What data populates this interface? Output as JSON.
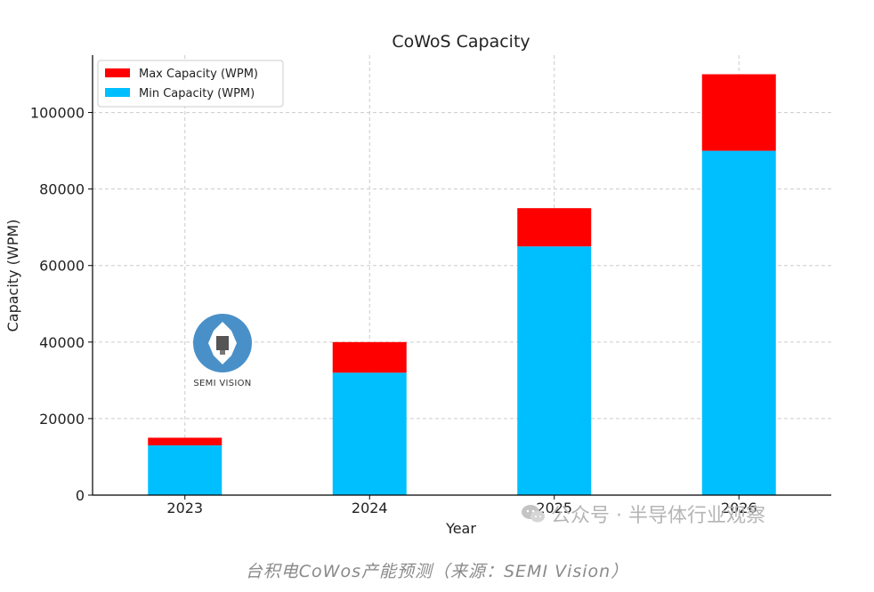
{
  "chart_data": {
    "type": "bar",
    "stacked": true,
    "title": "CoWoS Capacity",
    "xlabel": "Year",
    "ylabel": "Capacity (WPM)",
    "categories": [
      "2023",
      "2024",
      "2025",
      "2026"
    ],
    "series": [
      {
        "name": "Min Capacity (WPM)",
        "color": "#00bfff",
        "values": [
          13000,
          32000,
          65000,
          90000
        ]
      },
      {
        "name": "Max Capacity (WPM)",
        "color": "#ff0000",
        "values": [
          2000,
          8000,
          10000,
          20000
        ]
      }
    ],
    "ylim": [
      0,
      115000
    ],
    "yticks": [
      0,
      20000,
      40000,
      60000,
      80000,
      100000
    ],
    "ytick_labels": [
      "0",
      "20000",
      "40000",
      "60000",
      "80000",
      "100000"
    ],
    "legend": {
      "placement": "top-left",
      "entries": [
        "Max Capacity (WPM)",
        "Min Capacity (WPM)"
      ]
    },
    "grid": true
  },
  "logo": {
    "text": "SEMI VISION"
  },
  "watermark": {
    "text": "公众号 · 半导体行业观察"
  },
  "caption": "台积电CoWos产能预测（来源：SEMI Vision）"
}
